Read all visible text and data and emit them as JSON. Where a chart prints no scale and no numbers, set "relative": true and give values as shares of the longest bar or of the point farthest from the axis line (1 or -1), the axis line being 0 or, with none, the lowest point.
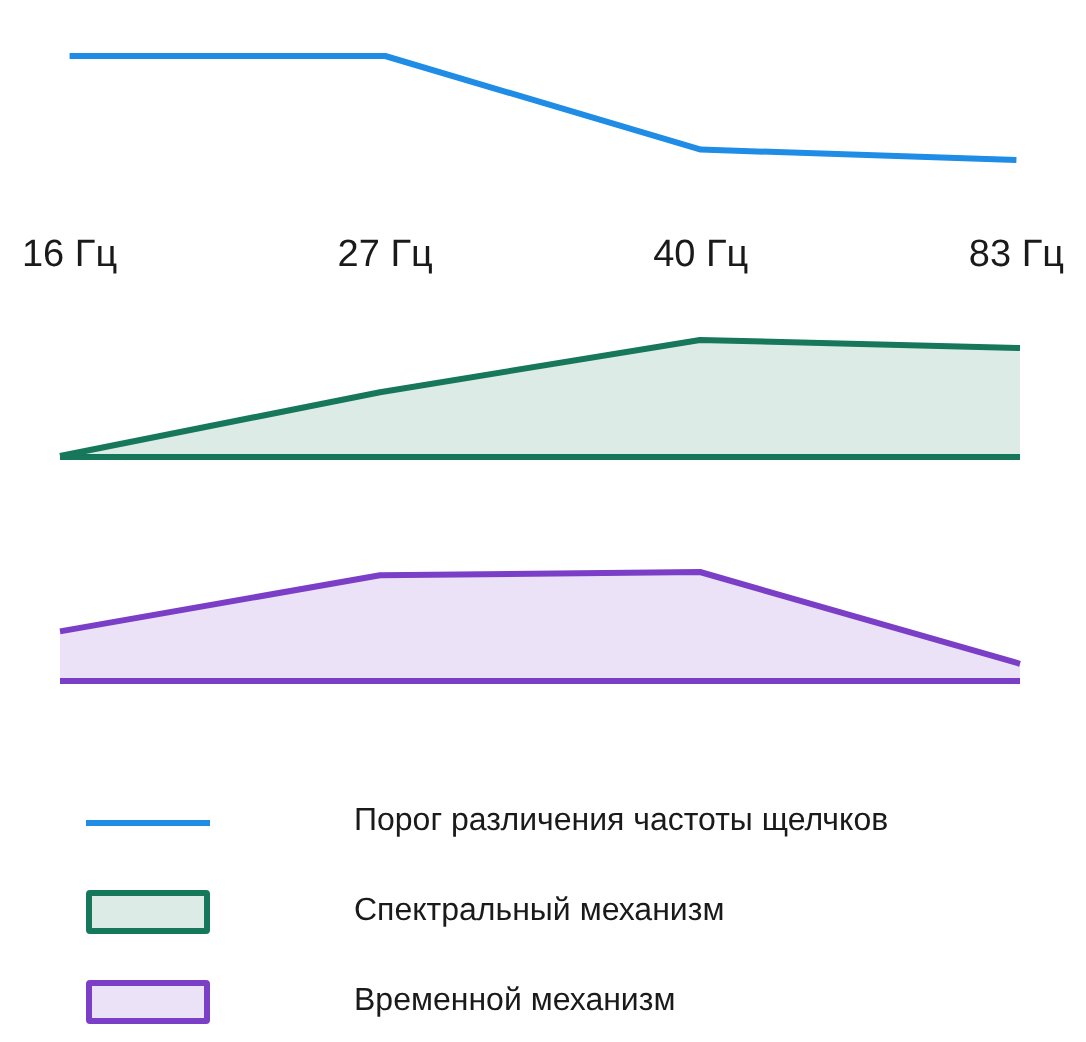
{
  "chart_data": [
    {
      "type": "line",
      "relative": true,
      "categories": [
        "16 Гц",
        "27 Гц",
        "40 Гц",
        "83 Гц"
      ],
      "tick_labels": "x",
      "legend": "bottom",
      "marker": "none",
      "line_style": "solid",
      "series": [
        {
          "name": "Порог различения частоты щелчков",
          "color": "#1f8ce6",
          "values": [
            1,
            1,
            0.1,
            0
          ]
        }
      ]
    },
    {
      "type": "area",
      "relative": true,
      "categories": [
        null,
        null,
        null,
        null
      ],
      "legend": "bottom left",
      "marker": "none",
      "series": [
        {
          "name": "Спектральный механизм",
          "color": "#16775a",
          "values": [
            0,
            0.55,
            1,
            0.93
          ]
        }
      ]
    },
    {
      "type": "area",
      "relative": true,
      "categories": [
        null,
        null,
        null,
        null
      ],
      "legend": "bottom left",
      "marker": "none",
      "series": [
        {
          "name": "Временной механизм",
          "color": "#7a3fc6",
          "values": [
            0.45,
            0.97,
            1,
            0.15
          ]
        }
      ]
    }
  ]
}
